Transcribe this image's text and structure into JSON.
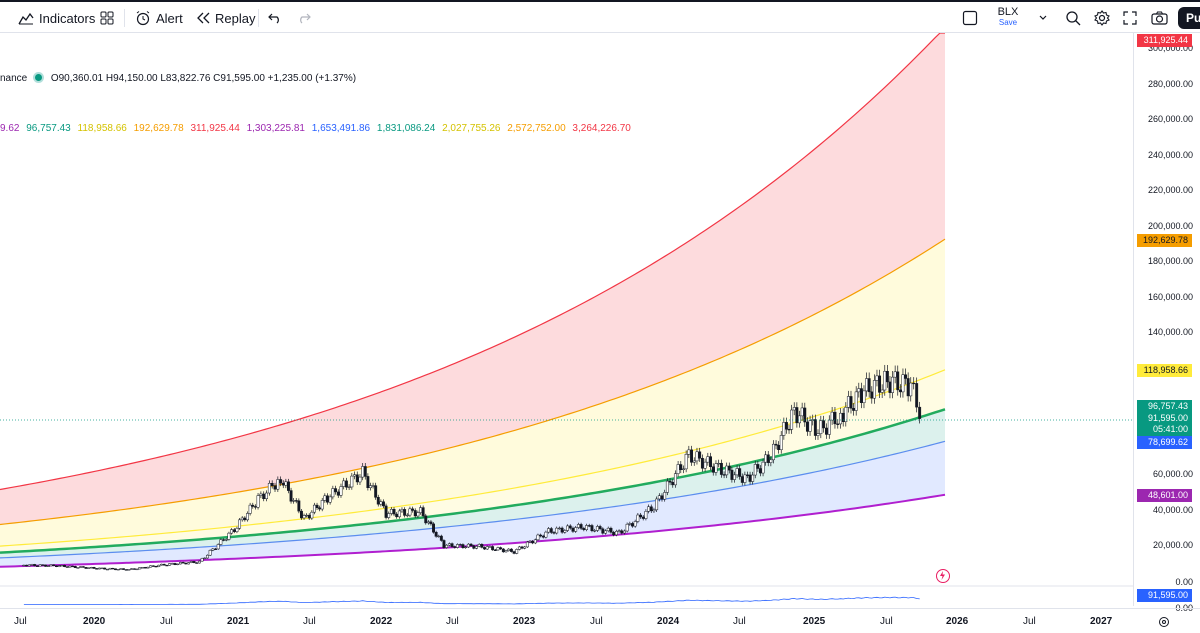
{
  "toolbar": {
    "indicators_label": "Indicators",
    "alert_label": "Alert",
    "replay_label": "Replay",
    "layout_name": "BLX",
    "save_label": "Save",
    "publish_label": "Pu"
  },
  "legend": {
    "symbol_fragment": "nance",
    "ohlc": "O90,360.01 H94,150.00 L83,822.76 C91,595.00 +1,235.00 (+1.37%)",
    "band_values": [
      {
        "text": "9.62",
        "color": "#9c27b0"
      },
      {
        "text": "96,757.43",
        "color": "#089981"
      },
      {
        "text": "118,958.66",
        "color": "#d4c200"
      },
      {
        "text": "192,629.78",
        "color": "#f59d00"
      },
      {
        "text": "311,925.44",
        "color": "#f23645"
      },
      {
        "text": "1,303,225.81",
        "color": "#9c27b0"
      },
      {
        "text": "1,653,491.86",
        "color": "#2962ff"
      },
      {
        "text": "1,831,086.24",
        "color": "#089981"
      },
      {
        "text": "2,027,755.26",
        "color": "#d4c200"
      },
      {
        "text": "2,572,752.00",
        "color": "#f59d00"
      },
      {
        "text": "3,264,226.70",
        "color": "#f23645"
      }
    ]
  },
  "price_axis": {
    "labels": [
      "300,000.00",
      "280,000.00",
      "260,000.00",
      "240,000.00",
      "220,000.00",
      "200,000.00",
      "180,000.00",
      "160,000.00",
      "140,000.00",
      "60,000.00",
      "40,000.00",
      "20,000.00",
      "0.00",
      "0.00"
    ]
  },
  "price_tags": [
    {
      "text": "311,925.44",
      "bg": "#f23645",
      "fg": "#ffffff"
    },
    {
      "text": "192,629.78",
      "bg": "#f59d00",
      "fg": "#131722"
    },
    {
      "text": "118,958.66",
      "bg": "#ffeb3b",
      "fg": "#131722"
    },
    {
      "text": "96,757.43",
      "bg": "#089981",
      "fg": "#ffffff"
    },
    {
      "text": "91,595.00",
      "bg": "#089981",
      "fg": "#ffffff"
    },
    {
      "text": "05:41:00",
      "bg": "#089981",
      "fg": "#ffffff"
    },
    {
      "text": "78,699.62",
      "bg": "#2962ff",
      "fg": "#ffffff"
    },
    {
      "text": "48,601.00",
      "bg": "#9c27b0",
      "fg": "#ffffff"
    },
    {
      "text": "91,595.00",
      "bg": "#2962ff",
      "fg": "#ffffff"
    }
  ],
  "time_axis": {
    "labels": [
      {
        "text": "Jul",
        "year": false
      },
      {
        "text": "2020",
        "year": true
      },
      {
        "text": "Jul",
        "year": false
      },
      {
        "text": "2021",
        "year": true
      },
      {
        "text": "Jul",
        "year": false
      },
      {
        "text": "2022",
        "year": true
      },
      {
        "text": "Jul",
        "year": false
      },
      {
        "text": "2023",
        "year": true
      },
      {
        "text": "Jul",
        "year": false
      },
      {
        "text": "2024",
        "year": true
      },
      {
        "text": "Jul",
        "year": false
      },
      {
        "text": "2025",
        "year": true
      },
      {
        "text": "Jul",
        "year": false
      },
      {
        "text": "2026",
        "year": true
      },
      {
        "text": "Jul",
        "year": false
      },
      {
        "text": "2027",
        "year": true
      }
    ]
  },
  "colors": {
    "up": "#089981",
    "down": "#f23645",
    "band_red": "#f23645",
    "band_orange": "#f59d00",
    "band_yellow": "#ffeb3b",
    "band_green": "#22ab5e",
    "band_blue": "#5b8def",
    "band_purple": "#b01fcf"
  },
  "chart_data": {
    "type": "candlestick",
    "ylim": [
      0,
      311925.44
    ],
    "last_close": 91595.0,
    "bands_current": [
      {
        "name": "311,925.44",
        "value": 311925.44
      },
      {
        "name": "192,629.78",
        "value": 192629.78
      },
      {
        "name": "118,958.66",
        "value": 118958.66
      },
      {
        "name": "96,757.43",
        "value": 96757.43
      },
      {
        "name": "78,699.62",
        "value": 78699.62
      },
      {
        "name": "48,601.00",
        "value": 48601.0
      }
    ],
    "approx_closes": [
      {
        "t": "2019-06",
        "v": 9000
      },
      {
        "t": "2019-09",
        "v": 8500
      },
      {
        "t": "2019-12",
        "v": 7200
      },
      {
        "t": "2020-03",
        "v": 6400
      },
      {
        "t": "2020-06",
        "v": 9200
      },
      {
        "t": "2020-09",
        "v": 10800
      },
      {
        "t": "2020-12",
        "v": 29000
      },
      {
        "t": "2021-02",
        "v": 46000
      },
      {
        "t": "2021-04",
        "v": 58000
      },
      {
        "t": "2021-06",
        "v": 35000
      },
      {
        "t": "2021-08",
        "v": 47000
      },
      {
        "t": "2021-11",
        "v": 61000
      },
      {
        "t": "2022-01",
        "v": 38000
      },
      {
        "t": "2022-04",
        "v": 39000
      },
      {
        "t": "2022-06",
        "v": 20000
      },
      {
        "t": "2022-09",
        "v": 19500
      },
      {
        "t": "2022-12",
        "v": 16500
      },
      {
        "t": "2023-03",
        "v": 28000
      },
      {
        "t": "2023-06",
        "v": 30500
      },
      {
        "t": "2023-09",
        "v": 27000
      },
      {
        "t": "2023-12",
        "v": 42000
      },
      {
        "t": "2024-03",
        "v": 71000
      },
      {
        "t": "2024-06",
        "v": 62000
      },
      {
        "t": "2024-08",
        "v": 58000
      },
      {
        "t": "2024-10",
        "v": 70000
      },
      {
        "t": "2024-12",
        "v": 96000
      },
      {
        "t": "2025-02",
        "v": 84000
      },
      {
        "t": "2025-04",
        "v": 94000
      },
      {
        "t": "2025-06",
        "v": 107000
      },
      {
        "t": "2025-08",
        "v": 113000
      },
      {
        "t": "2025-10",
        "v": 110000
      },
      {
        "t": "2025-11",
        "v": 91595
      }
    ]
  }
}
